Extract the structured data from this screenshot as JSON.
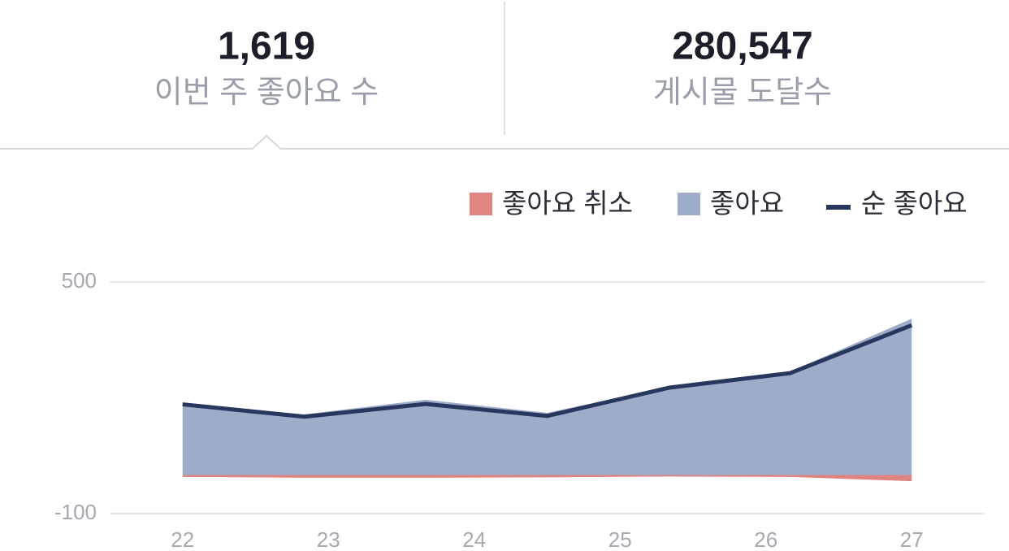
{
  "stats": [
    {
      "value": "1,619",
      "label": "이번 주 좋아요 수"
    },
    {
      "value": "280,547",
      "label": "게시물 도달수"
    }
  ],
  "chart_data": {
    "type": "area",
    "x": [
      22,
      22.833,
      23.667,
      24.5,
      25.333,
      26.167,
      27
    ],
    "xlim": [
      21.5,
      27.5
    ],
    "xticks": [
      22,
      23,
      24,
      25,
      26,
      27
    ],
    "ylim": [
      -100,
      500
    ],
    "yticks": [
      -100,
      500
    ],
    "grid": true,
    "series": [
      {
        "name": "좋아요 취소",
        "color": "#e08482",
        "style": "area",
        "values": [
          -5,
          -7,
          -7,
          -6,
          -4,
          -5,
          -16
        ]
      },
      {
        "name": "좋아요",
        "color": "#9eabc9",
        "style": "area",
        "values": [
          188,
          157,
          195,
          161,
          228,
          268,
          405
        ]
      },
      {
        "name": "순 좋아요",
        "color": "#27375e",
        "style": "line",
        "values": [
          183,
          151,
          184,
          153,
          226,
          264,
          388
        ]
      }
    ]
  }
}
